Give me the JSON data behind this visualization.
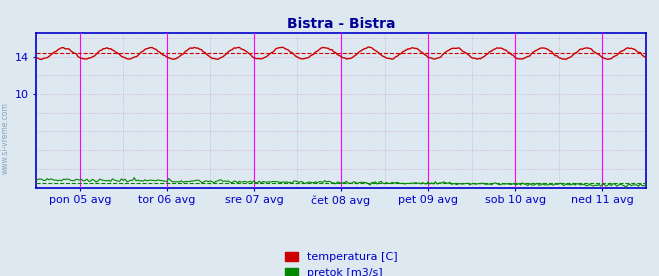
{
  "title": "Bistra - Bistra",
  "title_color": "#000099",
  "bg_color": "#dde8f0",
  "plot_bg_color": "#dde8f0",
  "watermark": "www.si-vreme.com",
  "yticks": [
    10,
    14
  ],
  "ylim": [
    0,
    16.5
  ],
  "xlim": [
    0,
    336
  ],
  "x_tick_labels": [
    "pon 05 avg",
    "tor 06 avg",
    "sre 07 avg",
    "čet 08 avg",
    "pet 09 avg",
    "sob 10 avg",
    "ned 11 avg"
  ],
  "x_tick_positions": [
    24,
    72,
    120,
    168,
    216,
    264,
    312
  ],
  "vline_positions": [
    24,
    72,
    120,
    168,
    216,
    264,
    312
  ],
  "temp_avg_hline": 14.35,
  "flow_avg_hline": 0.55,
  "temp_color": "#cc0000",
  "flow_color": "#008800",
  "vline_color": "#ff00ff",
  "hgrid_color": "#cc99cc",
  "vgrid_color": "#cc99cc",
  "axis_color": "#0000cc",
  "legend_temp": "temperatura [C]",
  "legend_flow": "pretok [m3/s]",
  "n_points": 337,
  "figsize": [
    6.59,
    2.76
  ],
  "dpi": 100
}
